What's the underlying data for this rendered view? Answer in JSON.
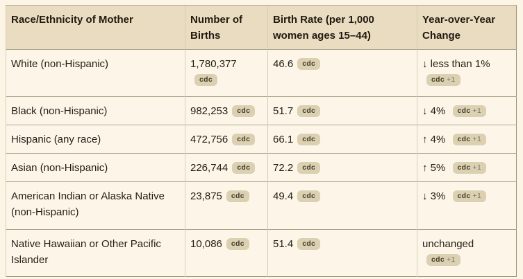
{
  "colors": {
    "page_bg": "#FCF4E5",
    "cell_bg": "#FDF6E8",
    "header_bg": "#E9DCC1",
    "border_outer": "#9A9279",
    "border_horizontal": "#ACA48C",
    "border_vertical": "#D6CCB2",
    "text": "#231D12",
    "badge_bg": "#DBD0B1",
    "badge_text": "#443D2B",
    "badge_plus_text": "#7A7260"
  },
  "table": {
    "headers": [
      "Race/Ethnicity of Mother",
      "Number of Births",
      "Birth Rate (per 1,000 women ages 15–44)",
      "Year-over-Year Change"
    ],
    "rows": [
      {
        "race": "White (non-Hispanic)",
        "births": "1,780,377",
        "births_badge": "cdc",
        "rate": "46.6",
        "rate_badge": "cdc",
        "yoy": "↓ less than 1%",
        "yoy_badge": "cdc",
        "yoy_badge_extra": "+1"
      },
      {
        "race": "Black (non-Hispanic)",
        "births": "982,253",
        "births_badge": "cdc",
        "rate": "51.7",
        "rate_badge": "cdc",
        "yoy": "↓ 4%",
        "yoy_badge": "cdc",
        "yoy_badge_extra": "+1"
      },
      {
        "race": "Hispanic (any race)",
        "births": "472,756",
        "births_badge": "cdc",
        "rate": "66.1",
        "rate_badge": "cdc",
        "yoy": "↑ 4%",
        "yoy_badge": "cdc",
        "yoy_badge_extra": "+1"
      },
      {
        "race": "Asian (non-Hispanic)",
        "births": "226,744",
        "births_badge": "cdc",
        "rate": "72.2",
        "rate_badge": "cdc",
        "yoy": "↑ 5%",
        "yoy_badge": "cdc",
        "yoy_badge_extra": "+1"
      },
      {
        "race": "American Indian or Alaska Native (non-Hispanic)",
        "births": "23,875",
        "births_badge": "cdc",
        "rate": "49.4",
        "rate_badge": "cdc",
        "yoy": "↓ 3%",
        "yoy_badge": "cdc",
        "yoy_badge_extra": "+1"
      },
      {
        "race": "Native Hawaiian or Other Pacific Islander",
        "births": "10,086",
        "births_badge": "cdc",
        "rate": "51.4",
        "rate_badge": "cdc",
        "yoy": "unchanged",
        "yoy_badge": "cdc",
        "yoy_badge_extra": "+1"
      }
    ]
  }
}
